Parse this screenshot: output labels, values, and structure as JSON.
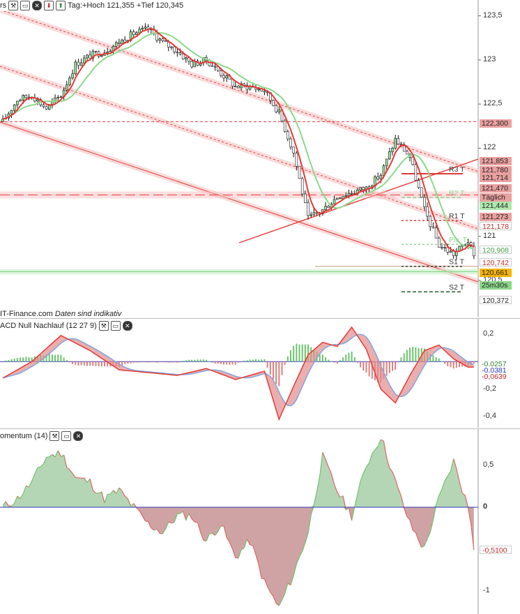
{
  "header": {
    "symbol_fragment": "rs",
    "day_range_text": "Tag:+Hoch 121,355 +Tief 120,345",
    "watermark": "IT-Finance.com",
    "disclaimer": "Daten sind indikativ"
  },
  "panels": {
    "macd_title": "ACD Null Nachlauf (12 27 9)",
    "momentum_title": "omentum (14)"
  },
  "icons": [
    "wrench-icon",
    "window-icon",
    "close-icon",
    "down-arrow-icon",
    "up-arrow-icon"
  ],
  "colors": {
    "bull_candle": "#9be29b",
    "bear_candle": "#ffffff",
    "ma_red": "#e53935",
    "ma_green": "#8bd88b",
    "macd_hist_pos": "#6cc36c",
    "macd_hist_neg": "#d98080",
    "momentum_pos_fill": "#b5d6b5",
    "momentum_neg_fill": "#cfa3a3",
    "zero_line": "#2b35b8"
  },
  "price_axis": {
    "ticks": [
      "123,5",
      "123",
      "122,5",
      "122",
      "121",
      "120,5"
    ],
    "tags": [
      {
        "label": "122,300",
        "bg": "#e9a0a0",
        "fg": "#222"
      },
      {
        "label": "121,853",
        "bg": "#e9a0a0",
        "fg": "#222"
      },
      {
        "label": "121,780",
        "bg": "#e9a0a0",
        "fg": "#222"
      },
      {
        "label": "121,714",
        "bg": "#e9a0a0",
        "fg": "#222"
      },
      {
        "label": "121,470",
        "bg": "#e9a0a0",
        "fg": "#222"
      },
      {
        "label": "Täglich",
        "bg": "#e9a0a0",
        "fg": "#222"
      },
      {
        "label": "121,444",
        "bg": "#aee8ae",
        "fg": "#222"
      },
      {
        "label": "121,273",
        "bg": "#e9a0a0",
        "fg": "#222"
      },
      {
        "label": "121,178",
        "bg": "#ffffff",
        "fg": "#c62828"
      },
      {
        "label": "120,908",
        "bg": "#ffffff",
        "fg": "#43a047"
      },
      {
        "label": "120,742",
        "bg": "#ffffff",
        "fg": "#c62828"
      },
      {
        "label": "120,661",
        "bg": "#f5b400",
        "fg": "#222"
      },
      {
        "label": "25m30s",
        "bg": "#8bd88b",
        "fg": "#222"
      },
      {
        "label": "120,372",
        "bg": "#ffffff",
        "fg": "#222"
      }
    ],
    "pivot_labels": [
      "R3 T",
      "R2 T",
      "R1 T",
      "Piv. T",
      "S1 T",
      "S2 T"
    ]
  },
  "macd_axis": {
    "ticks": [
      "0,2",
      "-0,2",
      "-0,4"
    ],
    "tags": [
      {
        "label": "-0,0257",
        "fg": "#2e7d32"
      },
      {
        "label": "-0,0381",
        "fg": "#2b35b8"
      },
      {
        "label": "-0,0639",
        "fg": "#c62828"
      }
    ]
  },
  "momentum_axis": {
    "ticks": [
      "0,5",
      "0",
      "-1"
    ],
    "tags": [
      {
        "label": "-0,5100",
        "fg": "#c62828"
      }
    ]
  },
  "chart_data": [
    {
      "type": "candlestick",
      "title": "",
      "ylim": [
        120.2,
        123.6
      ],
      "x_count": 163,
      "day_high": 121.355,
      "day_low": 120.345,
      "close_path": [
        [
          0,
          122.3
        ],
        [
          5,
          122.55
        ],
        [
          10,
          122.6
        ],
        [
          15,
          122.45
        ],
        [
          20,
          122.6
        ],
        [
          25,
          122.95
        ],
        [
          30,
          123.05
        ],
        [
          35,
          123.1
        ],
        [
          40,
          123.2
        ],
        [
          45,
          123.3
        ],
        [
          50,
          123.35
        ],
        [
          55,
          123.2
        ],
        [
          60,
          123.1
        ],
        [
          65,
          122.95
        ],
        [
          70,
          123.0
        ],
        [
          75,
          122.85
        ],
        [
          80,
          122.7
        ],
        [
          85,
          122.7
        ],
        [
          90,
          122.65
        ],
        [
          95,
          122.4
        ],
        [
          100,
          121.95
        ],
        [
          105,
          121.2
        ],
        [
          110,
          121.3
        ],
        [
          115,
          121.45
        ],
        [
          120,
          121.5
        ],
        [
          125,
          121.55
        ],
        [
          130,
          121.7
        ],
        [
          135,
          122.1
        ],
        [
          140,
          121.9
        ],
        [
          145,
          121.3
        ],
        [
          150,
          120.9
        ],
        [
          155,
          120.8
        ],
        [
          160,
          120.95
        ],
        [
          163,
          120.66
        ]
      ],
      "series": [
        {
          "name": "",
          "kind": "moving_average",
          "color": "#e53935"
        },
        {
          "name": "",
          "kind": "moving_average",
          "color": "#8bd88b"
        }
      ],
      "pivots": [
        {
          "label": "R3 T",
          "value": 121.71
        },
        {
          "label": "R2 T",
          "value": 121.44
        },
        {
          "label": "R1 T",
          "value": 121.18
        },
        {
          "label": "Piv. T",
          "value": 120.91
        },
        {
          "label": "S1 T",
          "value": 120.661
        },
        {
          "label": "S2 T",
          "value": 120.372
        }
      ],
      "horizontal_levels": [
        122.3,
        121.47
      ]
    },
    {
      "type": "macd",
      "title": "ACD Null Nachlauf (12 27 9)",
      "ylim": [
        -0.45,
        0.28
      ],
      "last_values": {
        "histogram": -0.0257,
        "macd": -0.0381,
        "signal": -0.0639
      },
      "macd_path": [
        [
          0,
          -0.12
        ],
        [
          10,
          0.0
        ],
        [
          20,
          0.19
        ],
        [
          30,
          0.08
        ],
        [
          40,
          -0.06
        ],
        [
          50,
          -0.08
        ],
        [
          60,
          -0.1
        ],
        [
          70,
          -0.05
        ],
        [
          80,
          -0.13
        ],
        [
          90,
          -0.07
        ],
        [
          95,
          -0.42
        ],
        [
          100,
          -0.18
        ],
        [
          105,
          0.05
        ],
        [
          110,
          0.14
        ],
        [
          115,
          0.11
        ],
        [
          120,
          0.25
        ],
        [
          125,
          0.09
        ],
        [
          130,
          -0.2
        ],
        [
          135,
          -0.3
        ],
        [
          140,
          -0.1
        ],
        [
          145,
          0.08
        ],
        [
          150,
          0.12
        ],
        [
          155,
          0.02
        ],
        [
          160,
          -0.04
        ]
      ]
    },
    {
      "type": "area",
      "title": "omentum (14)",
      "ylim": [
        -1.25,
        0.85
      ],
      "last_value": -0.51,
      "path": [
        [
          0,
          0.0
        ],
        [
          5,
          0.1
        ],
        [
          10,
          0.3
        ],
        [
          15,
          0.6
        ],
        [
          20,
          0.65
        ],
        [
          25,
          0.35
        ],
        [
          30,
          0.3
        ],
        [
          35,
          0.1
        ],
        [
          40,
          0.2
        ],
        [
          45,
          0.0
        ],
        [
          50,
          -0.2
        ],
        [
          55,
          -0.3
        ],
        [
          60,
          -0.1
        ],
        [
          65,
          -0.1
        ],
        [
          70,
          -0.4
        ],
        [
          75,
          -0.2
        ],
        [
          80,
          -0.6
        ],
        [
          85,
          -0.4
        ],
        [
          90,
          -0.9
        ],
        [
          95,
          -1.2
        ],
        [
          100,
          -0.8
        ],
        [
          105,
          -0.3
        ],
        [
          110,
          0.6
        ],
        [
          115,
          0.2
        ],
        [
          120,
          -0.1
        ],
        [
          125,
          0.5
        ],
        [
          130,
          0.85
        ],
        [
          135,
          0.3
        ],
        [
          140,
          -0.2
        ],
        [
          145,
          -0.5
        ],
        [
          150,
          0.1
        ],
        [
          155,
          0.55
        ],
        [
          160,
          0.0
        ],
        [
          163,
          -0.51
        ]
      ]
    }
  ]
}
